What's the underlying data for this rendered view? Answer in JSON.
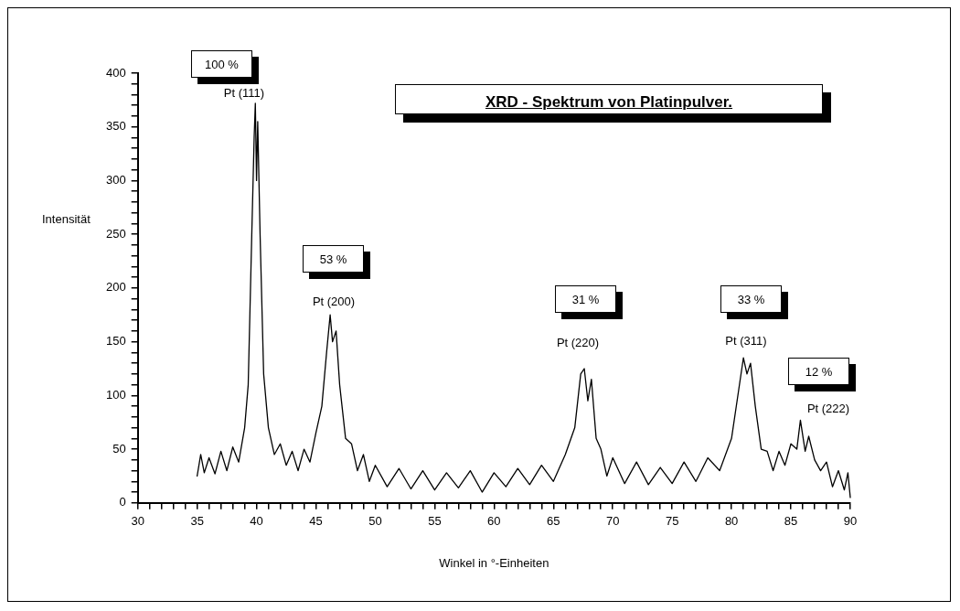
{
  "chart_data": {
    "type": "line",
    "title": "XRD - Spektrum von Platinpulver.",
    "xlabel": "Winkel in °-Einheiten",
    "ylabel": "Intensität",
    "x": [
      35,
      35.3,
      35.6,
      36,
      36.5,
      37,
      37.5,
      38,
      38.5,
      39,
      39.3,
      39.6,
      39.8,
      39.9,
      40.0,
      40.1,
      40.3,
      40.6,
      41,
      41.5,
      42,
      42.5,
      43,
      43.5,
      44,
      44.5,
      45,
      45.5,
      45.9,
      46.2,
      46.4,
      46.7,
      47,
      47.5,
      48,
      48.5,
      49,
      49.5,
      50,
      51,
      52,
      53,
      54,
      55,
      56,
      57,
      58,
      59,
      60,
      61,
      62,
      63,
      64,
      65,
      66,
      66.8,
      67.3,
      67.6,
      67.9,
      68.2,
      68.6,
      69,
      69.5,
      70,
      71,
      72,
      73,
      74,
      75,
      76,
      77,
      78,
      79,
      80,
      80.6,
      81,
      81.3,
      81.6,
      82,
      82.5,
      83,
      83.5,
      84,
      84.5,
      85,
      85.5,
      85.8,
      86.2,
      86.5,
      87,
      87.5,
      88,
      88.5,
      89,
      89.5,
      89.8,
      90
    ],
    "series": [
      {
        "color": "#000000",
        "values": [
          25,
          45,
          28,
          42,
          27,
          48,
          30,
          52,
          38,
          70,
          110,
          250,
          340,
          372,
          300,
          355,
          250,
          120,
          70,
          45,
          55,
          35,
          48,
          30,
          50,
          38,
          65,
          90,
          140,
          175,
          150,
          160,
          110,
          60,
          55,
          30,
          45,
          20,
          35,
          15,
          32,
          13,
          30,
          12,
          28,
          14,
          30,
          10,
          28,
          15,
          32,
          17,
          35,
          20,
          45,
          70,
          120,
          125,
          95,
          115,
          60,
          50,
          25,
          42,
          18,
          38,
          17,
          33,
          18,
          38,
          20,
          42,
          30,
          60,
          105,
          135,
          120,
          130,
          90,
          50,
          48,
          30,
          48,
          35,
          55,
          50,
          77,
          48,
          62,
          40,
          30,
          38,
          15,
          30,
          12,
          28,
          5
        ]
      }
    ],
    "xlim": [
      30,
      90
    ],
    "ylim": [
      0,
      400
    ],
    "xticks": [
      30,
      {
        "value": 31,
        "label": null
      },
      {
        "value": 32,
        "label": null
      },
      {
        "value": 33,
        "label": null
      },
      {
        "value": 34,
        "label": null
      },
      35,
      {
        "value": 36,
        "label": null
      },
      {
        "value": 37,
        "label": null
      },
      {
        "value": 38,
        "label": null
      },
      {
        "value": 39,
        "label": null
      },
      40,
      {
        "value": 41,
        "label": null
      },
      {
        "value": 42,
        "label": null
      },
      {
        "value": 43,
        "label": null
      },
      {
        "value": 44,
        "label": null
      },
      45,
      {
        "value": 46,
        "label": null
      },
      {
        "value": 47,
        "label": null
      },
      {
        "value": 48,
        "label": null
      },
      {
        "value": 49,
        "label": null
      },
      50,
      {
        "value": 51,
        "label": null
      },
      {
        "value": 52,
        "label": null
      },
      {
        "value": 53,
        "label": null
      },
      {
        "value": 54,
        "label": null
      },
      55,
      {
        "value": 56,
        "label": null
      },
      {
        "value": 57,
        "label": null
      },
      {
        "value": 58,
        "label": null
      },
      {
        "value": 59,
        "label": null
      },
      60,
      {
        "value": 61,
        "label": null
      },
      {
        "value": 62,
        "label": null
      },
      {
        "value": 63,
        "label": null
      },
      {
        "value": 64,
        "label": null
      },
      65,
      {
        "value": 66,
        "label": null
      },
      {
        "value": 67,
        "label": null
      },
      {
        "value": 68,
        "label": null
      },
      {
        "value": 69,
        "label": null
      },
      70,
      {
        "value": 71,
        "label": null
      },
      {
        "value": 72,
        "label": null
      },
      {
        "value": 73,
        "label": null
      },
      {
        "value": 74,
        "label": null
      },
      75,
      {
        "value": 76,
        "label": null
      },
      {
        "value": 77,
        "label": null
      },
      {
        "value": 78,
        "label": null
      },
      {
        "value": 79,
        "label": null
      },
      80,
      {
        "value": 81,
        "label": null
      },
      {
        "value": 82,
        "label": null
      },
      {
        "value": 83,
        "label": null
      },
      {
        "value": 84,
        "label": null
      },
      85,
      {
        "value": 86,
        "label": null
      },
      {
        "value": 87,
        "label": null
      },
      {
        "value": 88,
        "label": null
      },
      {
        "value": 89,
        "label": null
      },
      90
    ],
    "yticks": [
      0,
      {
        "value": 10,
        "label": null
      },
      {
        "value": 20,
        "label": null
      },
      {
        "value": 30,
        "label": null
      },
      {
        "value": 40,
        "label": null
      },
      50,
      {
        "value": 60,
        "label": null
      },
      {
        "value": 70,
        "label": null
      },
      {
        "value": 80,
        "label": null
      },
      {
        "value": 90,
        "label": null
      },
      100,
      {
        "value": 110,
        "label": null
      },
      {
        "value": 120,
        "label": null
      },
      {
        "value": 130,
        "label": null
      },
      {
        "value": 140,
        "label": null
      },
      150,
      {
        "value": 160,
        "label": null
      },
      {
        "value": 170,
        "label": null
      },
      {
        "value": 180,
        "label": null
      },
      {
        "value": 190,
        "label": null
      },
      200,
      {
        "value": 210,
        "label": null
      },
      {
        "value": 220,
        "label": null
      },
      {
        "value": 230,
        "label": null
      },
      {
        "value": 240,
        "label": null
      },
      250,
      {
        "value": 260,
        "label": null
      },
      {
        "value": 270,
        "label": null
      },
      {
        "value": 280,
        "label": null
      },
      {
        "value": 290,
        "label": null
      },
      300,
      {
        "value": 310,
        "label": null
      },
      {
        "value": 320,
        "label": null
      },
      {
        "value": 330,
        "label": null
      },
      {
        "value": 340,
        "label": null
      },
      350,
      {
        "value": 360,
        "label": null
      },
      {
        "value": 370,
        "label": null
      },
      {
        "value": 380,
        "label": null
      },
      {
        "value": 390,
        "label": null
      },
      400
    ],
    "annotations": [
      "100 %",
      "Pt (111)",
      "53 %",
      "Pt (200)",
      "31 %",
      "Pt (220)",
      "33 %",
      "Pt (311)",
      "12 %",
      "Pt (222)"
    ],
    "grid": false,
    "legend": false,
    "marker": "none",
    "line_style": "solid"
  }
}
